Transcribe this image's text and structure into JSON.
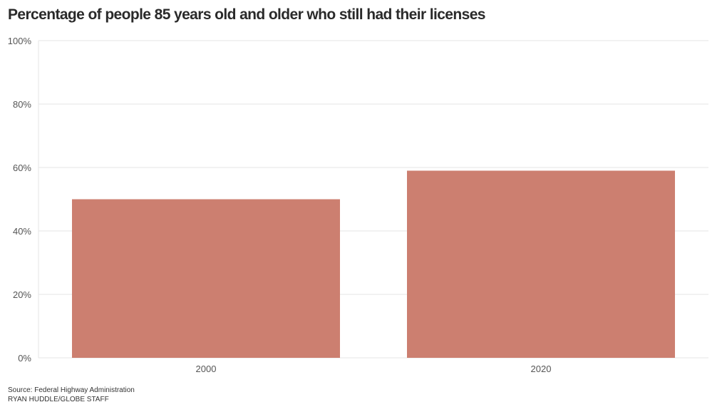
{
  "chart_data": {
    "type": "bar",
    "title": "Percentage of people 85 years old and older who still had their licenses",
    "categories": [
      "2000",
      "2020"
    ],
    "values": [
      50,
      59
    ],
    "ylim": [
      0,
      100
    ],
    "yticks": [
      0,
      20,
      40,
      60,
      80,
      100
    ],
    "ytick_labels": [
      "0%",
      "20%",
      "40%",
      "60%",
      "80%",
      "100%"
    ],
    "xlabel": "",
    "ylabel": "",
    "grid": true,
    "bar_color": "#cc7f70"
  },
  "footer": {
    "source": "Source: Federal Highway Administration",
    "credit": "RYAN HUDDLE/GLOBE STAFF"
  }
}
